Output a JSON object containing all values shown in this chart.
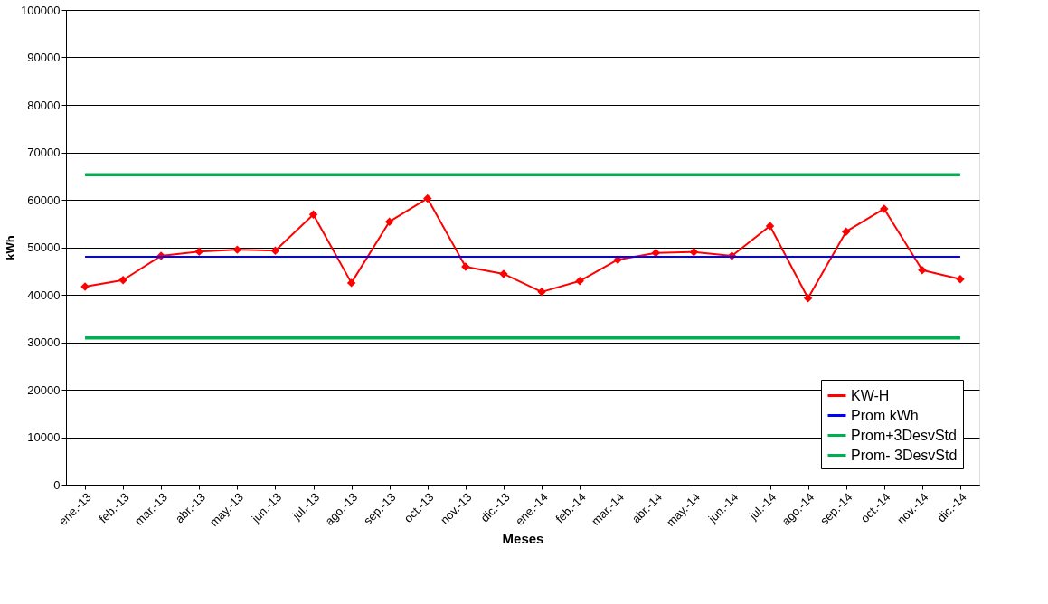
{
  "chart_data": {
    "type": "line",
    "xlabel": "Meses",
    "ylabel": "kWh",
    "categories": [
      "ene.-13",
      "feb.-13",
      "mar.-13",
      "abr.-13",
      "may.-13",
      "jun.-13",
      "jul.-13",
      "ago.-13",
      "sep.-13",
      "oct.-13",
      "nov.-13",
      "dic.-13",
      "ene.-14",
      "feb.-14",
      "mar.-14",
      "abr.-14",
      "may.-14",
      "jun.-14",
      "jul.-14",
      "ago.-14",
      "sep.-14",
      "oct.-14",
      "nov.-14",
      "dic.-14"
    ],
    "series": [
      {
        "name": "KW-H",
        "color": "#ff0000",
        "marker": "diamond",
        "values": [
          41700,
          43100,
          48200,
          49100,
          49500,
          49300,
          56900,
          42500,
          55400,
          60300,
          45900,
          44400,
          40600,
          42900,
          47400,
          48800,
          49000,
          48200,
          54500,
          39300,
          53300,
          58100,
          45200,
          43300
        ]
      },
      {
        "name": "Prom kWh",
        "color": "#0000ff",
        "marker": "none",
        "values": [
          48000,
          48000,
          48000,
          48000,
          48000,
          48000,
          48000,
          48000,
          48000,
          48000,
          48000,
          48000,
          48000,
          48000,
          48000,
          48000,
          48000,
          48000,
          48000,
          48000,
          48000,
          48000,
          48000,
          48000
        ]
      },
      {
        "name": "Prom+3DesvStd",
        "color": "#00b050",
        "marker": "none",
        "values": [
          65300,
          65300,
          65300,
          65300,
          65300,
          65300,
          65300,
          65300,
          65300,
          65300,
          65300,
          65300,
          65300,
          65300,
          65300,
          65300,
          65300,
          65300,
          65300,
          65300,
          65300,
          65300,
          65300,
          65300
        ]
      },
      {
        "name": "Prom- 3DesvStd",
        "color": "#00b050",
        "marker": "none",
        "values": [
          30900,
          30900,
          30900,
          30900,
          30900,
          30900,
          30900,
          30900,
          30900,
          30900,
          30900,
          30900,
          30900,
          30900,
          30900,
          30900,
          30900,
          30900,
          30900,
          30900,
          30900,
          30900,
          30900,
          30900
        ]
      }
    ],
    "ylim": [
      0,
      100000
    ],
    "yticks": [
      0,
      10000,
      20000,
      30000,
      40000,
      50000,
      60000,
      70000,
      80000,
      90000,
      100000
    ],
    "grid": "y",
    "legend": "bottom right"
  }
}
